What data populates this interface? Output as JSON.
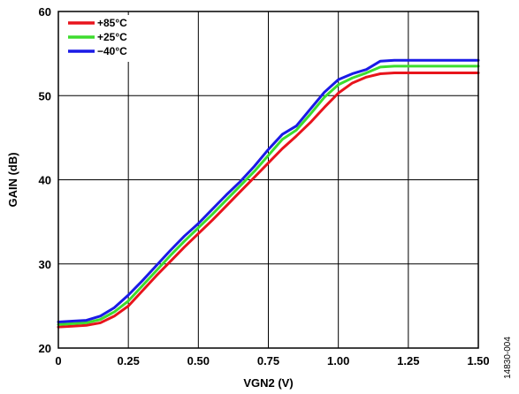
{
  "figure_id": "14830-004",
  "chart_data": {
    "type": "line",
    "xlabel": "VGN2 (V)",
    "ylabel": "GAIN (dB)",
    "xlim": [
      0,
      1.5
    ],
    "ylim": [
      20,
      60
    ],
    "x_ticks": [
      "0",
      "0.25",
      "0.50",
      "0.75",
      "1.00",
      "1.25",
      "1.50"
    ],
    "y_ticks": [
      "20",
      "30",
      "40",
      "50",
      "60"
    ],
    "grid": true,
    "legend_position": "top-left",
    "series": [
      {
        "name": "+85°C",
        "color": "#e8141c",
        "points": [
          [
            0,
            22.5
          ],
          [
            0.05,
            22.6
          ],
          [
            0.1,
            22.7
          ],
          [
            0.15,
            23.0
          ],
          [
            0.2,
            23.8
          ],
          [
            0.25,
            25.0
          ],
          [
            0.3,
            26.8
          ],
          [
            0.35,
            28.6
          ],
          [
            0.4,
            30.3
          ],
          [
            0.45,
            32.0
          ],
          [
            0.5,
            33.6
          ],
          [
            0.55,
            35.2
          ],
          [
            0.6,
            36.9
          ],
          [
            0.65,
            38.6
          ],
          [
            0.7,
            40.3
          ],
          [
            0.75,
            42.0
          ],
          [
            0.8,
            43.7
          ],
          [
            0.85,
            45.2
          ],
          [
            0.9,
            46.8
          ],
          [
            0.95,
            48.6
          ],
          [
            1.0,
            50.3
          ],
          [
            1.05,
            51.5
          ],
          [
            1.1,
            52.2
          ],
          [
            1.15,
            52.6
          ],
          [
            1.2,
            52.7
          ],
          [
            1.3,
            52.7
          ],
          [
            1.4,
            52.7
          ],
          [
            1.5,
            52.7
          ]
        ]
      },
      {
        "name": "+25°C",
        "color": "#3ddc2e",
        "points": [
          [
            0,
            22.8
          ],
          [
            0.05,
            22.9
          ],
          [
            0.1,
            23.0
          ],
          [
            0.15,
            23.4
          ],
          [
            0.2,
            24.3
          ],
          [
            0.25,
            25.6
          ],
          [
            0.3,
            27.4
          ],
          [
            0.35,
            29.2
          ],
          [
            0.4,
            31.0
          ],
          [
            0.45,
            32.7
          ],
          [
            0.5,
            34.3
          ],
          [
            0.55,
            35.9
          ],
          [
            0.6,
            37.6
          ],
          [
            0.65,
            39.3
          ],
          [
            0.7,
            41.0
          ],
          [
            0.75,
            42.9
          ],
          [
            0.8,
            44.8
          ],
          [
            0.85,
            45.9
          ],
          [
            0.9,
            47.8
          ],
          [
            0.95,
            49.8
          ],
          [
            1.0,
            51.3
          ],
          [
            1.05,
            52.1
          ],
          [
            1.1,
            52.7
          ],
          [
            1.15,
            53.4
          ],
          [
            1.2,
            53.5
          ],
          [
            1.3,
            53.5
          ],
          [
            1.4,
            53.5
          ],
          [
            1.5,
            53.5
          ]
        ]
      },
      {
        "name": "−40°C",
        "color": "#1a1ae6",
        "points": [
          [
            0,
            23.1
          ],
          [
            0.05,
            23.2
          ],
          [
            0.1,
            23.3
          ],
          [
            0.15,
            23.8
          ],
          [
            0.2,
            24.8
          ],
          [
            0.25,
            26.3
          ],
          [
            0.3,
            28.0
          ],
          [
            0.35,
            29.8
          ],
          [
            0.4,
            31.6
          ],
          [
            0.45,
            33.3
          ],
          [
            0.5,
            34.8
          ],
          [
            0.55,
            36.5
          ],
          [
            0.6,
            38.2
          ],
          [
            0.65,
            39.8
          ],
          [
            0.7,
            41.6
          ],
          [
            0.75,
            43.6
          ],
          [
            0.8,
            45.4
          ],
          [
            0.85,
            46.4
          ],
          [
            0.9,
            48.4
          ],
          [
            0.95,
            50.4
          ],
          [
            1.0,
            51.9
          ],
          [
            1.05,
            52.6
          ],
          [
            1.1,
            53.1
          ],
          [
            1.15,
            54.1
          ],
          [
            1.2,
            54.2
          ],
          [
            1.3,
            54.2
          ],
          [
            1.4,
            54.2
          ],
          [
            1.5,
            54.2
          ]
        ]
      }
    ]
  }
}
